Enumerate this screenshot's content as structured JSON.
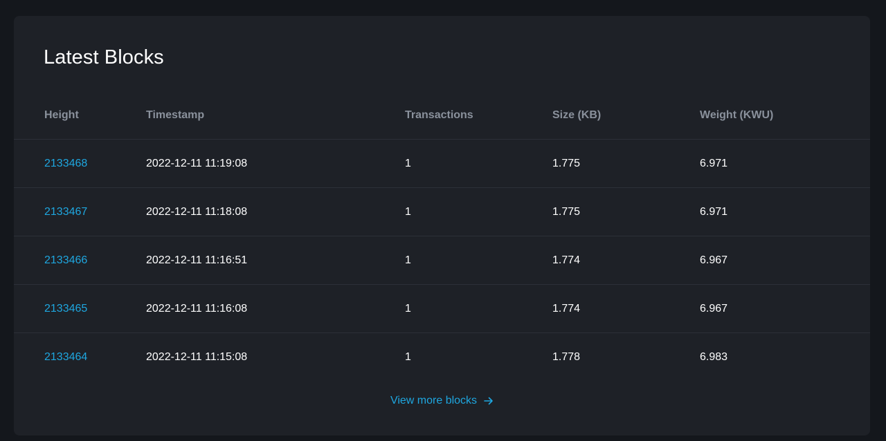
{
  "card": {
    "title": "Latest Blocks"
  },
  "table": {
    "headers": {
      "height": "Height",
      "timestamp": "Timestamp",
      "transactions": "Transactions",
      "size": "Size (KB)",
      "weight": "Weight (KWU)"
    },
    "rows": [
      {
        "height": "2133468",
        "timestamp": "2022-12-11 11:19:08",
        "transactions": "1",
        "size": "1.775",
        "weight": "6.971"
      },
      {
        "height": "2133467",
        "timestamp": "2022-12-11 11:18:08",
        "transactions": "1",
        "size": "1.775",
        "weight": "6.971"
      },
      {
        "height": "2133466",
        "timestamp": "2022-12-11 11:16:51",
        "transactions": "1",
        "size": "1.774",
        "weight": "6.967"
      },
      {
        "height": "2133465",
        "timestamp": "2022-12-11 11:16:08",
        "transactions": "1",
        "size": "1.774",
        "weight": "6.967"
      },
      {
        "height": "2133464",
        "timestamp": "2022-12-11 11:15:08",
        "transactions": "1",
        "size": "1.778",
        "weight": "6.983"
      }
    ]
  },
  "footer": {
    "view_more_label": "View more blocks",
    "view_more_icon": "arrow-right-icon"
  },
  "colors": {
    "background": "#14171c",
    "card": "#1e2127",
    "link": "#1ea7e0",
    "header_text": "#8a919c",
    "text": "#ffffff",
    "divider": "#2c3038"
  }
}
